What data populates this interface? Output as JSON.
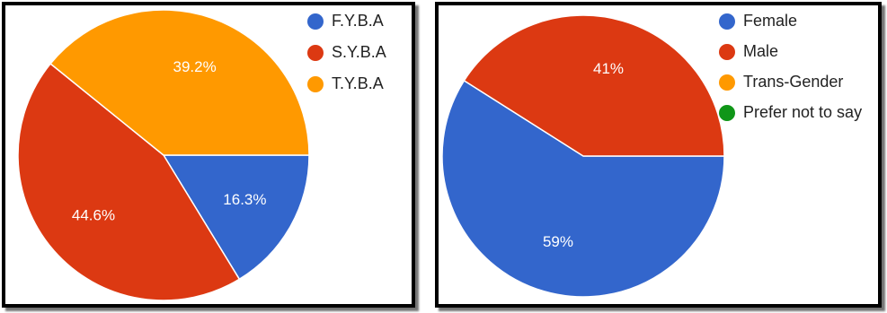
{
  "chart_data": [
    {
      "type": "pie",
      "title": "",
      "categories": [
        "F.Y.B.A",
        "S.Y.B.A",
        "T.Y.B.A"
      ],
      "values": [
        16.3,
        44.6,
        39.2
      ],
      "labels": [
        "16.3%",
        "44.6%",
        "39.2%"
      ],
      "colors": [
        "#3366cc",
        "#dc3912",
        "#ff9900"
      ],
      "legend_position": "right"
    },
    {
      "type": "pie",
      "title": "",
      "categories": [
        "Female",
        "Male",
        "Trans-Gender",
        "Prefer not to say"
      ],
      "values": [
        59,
        41,
        0,
        0
      ],
      "labels": [
        "59%",
        "41%",
        "",
        ""
      ],
      "colors": [
        "#3366cc",
        "#dc3912",
        "#ff9900",
        "#109618"
      ],
      "legend_position": "right"
    }
  ]
}
